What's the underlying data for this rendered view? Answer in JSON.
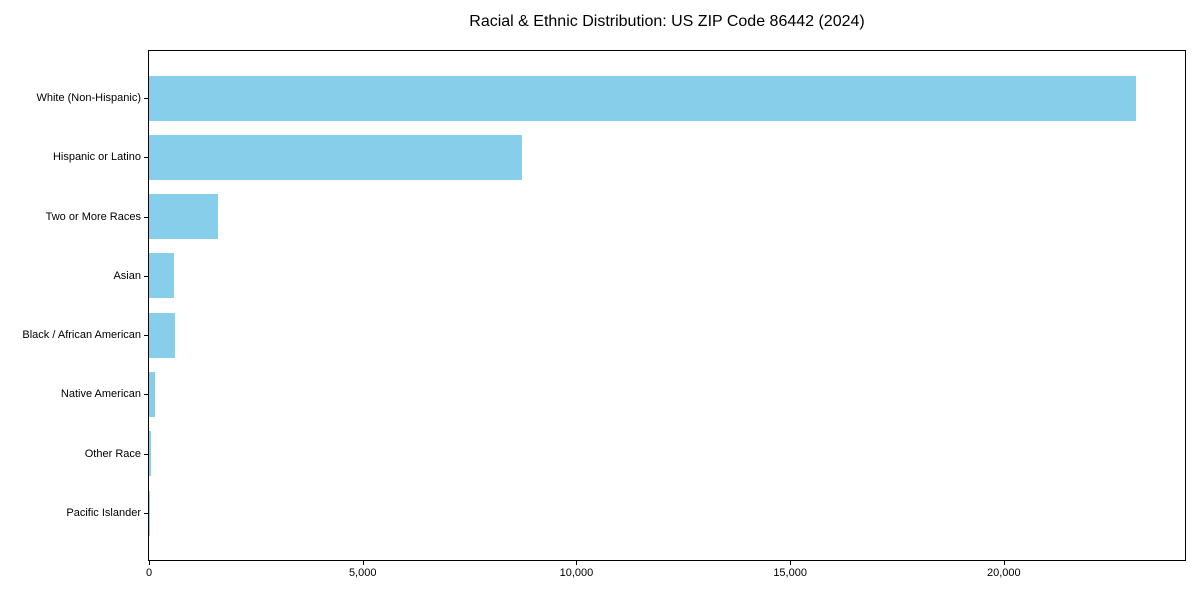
{
  "chart_data": {
    "type": "bar",
    "orientation": "horizontal",
    "title": "Racial & Ethnic Distribution: US ZIP Code 86442 (2024)",
    "categories": [
      "White (Non-Hispanic)",
      "Hispanic or Latino",
      "Two or More Races",
      "Asian",
      "Black / African American",
      "Native American",
      "Other Race",
      "Pacific Islander"
    ],
    "values": [
      23080,
      8720,
      1620,
      590,
      600,
      140,
      40,
      10
    ],
    "xlabel": "",
    "ylabel": "",
    "xlim": [
      0,
      24238
    ],
    "xticks": [
      0,
      5000,
      10000,
      15000,
      20000
    ],
    "xtick_labels": [
      "0",
      "5,000",
      "10,000",
      "15,000",
      "20,000"
    ],
    "grid": false,
    "legend": null,
    "bar_color": "#87CEEB",
    "axis_color": "#000000",
    "text_color": "#000000",
    "background": "#ffffff"
  }
}
